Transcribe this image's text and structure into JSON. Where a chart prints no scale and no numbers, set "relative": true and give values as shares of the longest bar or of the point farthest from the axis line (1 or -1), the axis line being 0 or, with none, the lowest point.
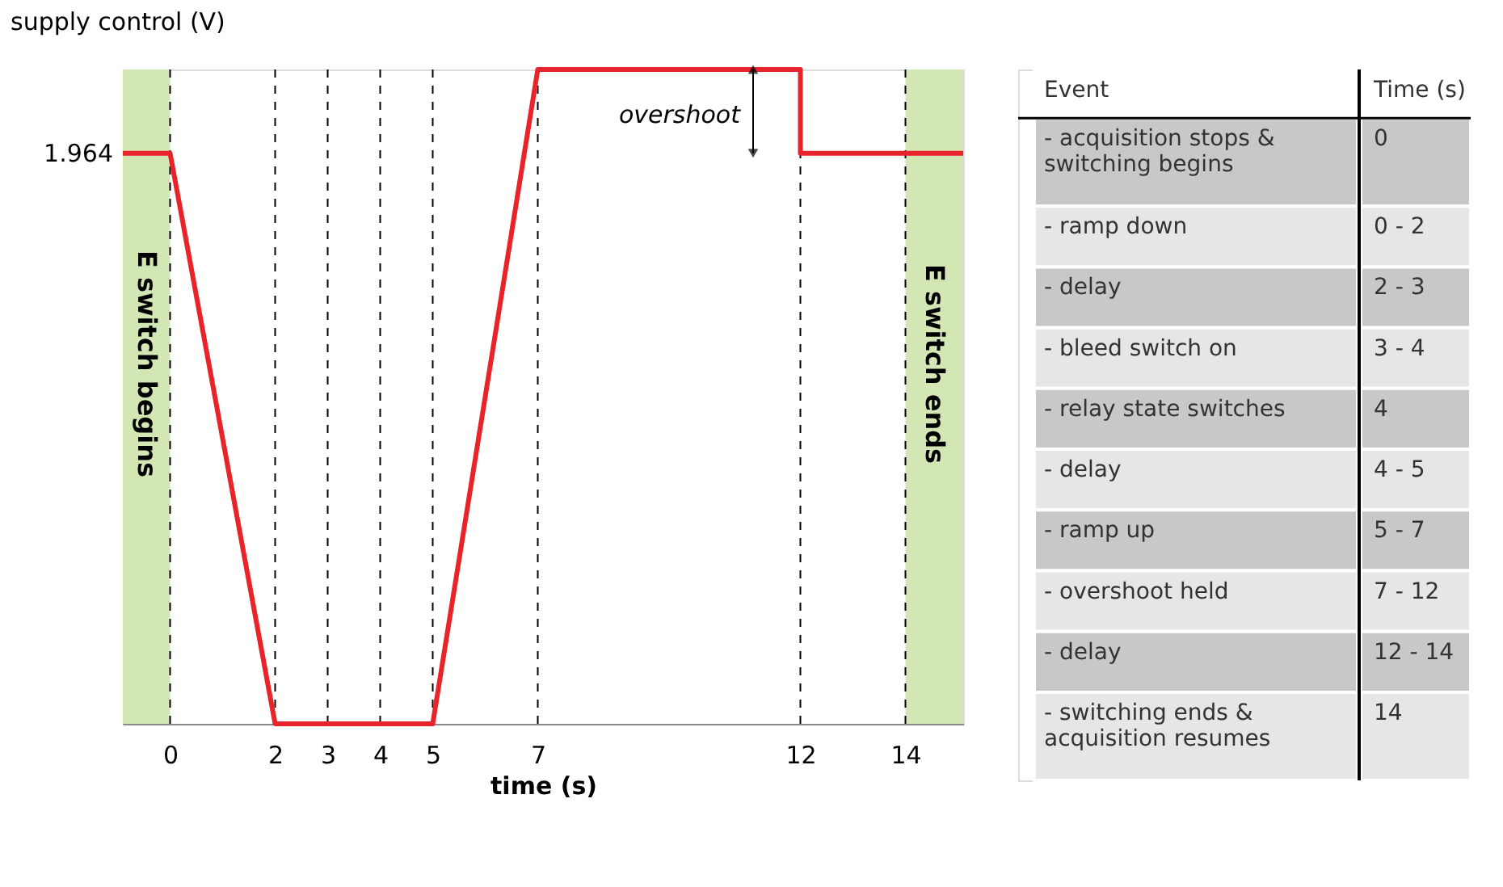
{
  "chart_data": [
    {
      "type": "line",
      "xlabel": "time (s)",
      "ylabel": "supply control (V)",
      "relative": true,
      "x": [
        -0.9,
        0,
        2,
        5,
        7,
        12,
        12,
        15.1
      ],
      "series": [
        {
          "color": "#e8242a",
          "values": [
            0.872,
            0.872,
            0,
            0,
            1,
            1,
            0.872,
            0.872
          ]
        }
      ],
      "xlim": [
        -0.9,
        15.1
      ],
      "xticks": [
        0,
        2,
        3,
        4,
        5,
        7,
        12,
        14
      ],
      "grid": false,
      "marker": "none",
      "line_style": "solid",
      "ref_lines": [
        {
          "axis": "x",
          "value": 0,
          "line_style": "dashed",
          "color": "#000000"
        },
        {
          "axis": "x",
          "value": 2,
          "line_style": "dashed",
          "color": "#000000"
        },
        {
          "axis": "x",
          "value": 3,
          "line_style": "dashed",
          "color": "#000000"
        },
        {
          "axis": "x",
          "value": 4,
          "line_style": "dashed",
          "color": "#000000"
        },
        {
          "axis": "x",
          "value": 5,
          "line_style": "dashed",
          "color": "#000000"
        },
        {
          "axis": "x",
          "value": 7,
          "line_style": "dashed",
          "color": "#000000"
        },
        {
          "axis": "x",
          "value": 12,
          "line_style": "dashed",
          "color": "#000000"
        },
        {
          "axis": "x",
          "value": 14,
          "line_style": "dashed",
          "color": "#000000"
        }
      ],
      "bands": [
        {
          "axis": "x",
          "from": -0.9,
          "to": 0,
          "label": "E switch begins",
          "color": "#d3e7b5"
        },
        {
          "axis": "x",
          "from": 14,
          "to": 15.1,
          "label": "E switch ends",
          "color": "#d3e7b5"
        }
      ],
      "annotations": [
        "1.964",
        {
          "text": "overshoot",
          "x": 11.1,
          "y": 1
        }
      ]
    },
    {
      "type": "other",
      "annotations": [
        "Event",
        "Time (s)",
        "- acquisition stops &\nswitching begins",
        "0",
        "- ramp down",
        "0 - 2",
        "- delay",
        "2 - 3",
        "- bleed switch on",
        "3 - 4",
        "- relay state switches",
        "4",
        "- delay",
        "4 - 5",
        "- ramp up",
        "5 - 7",
        "- overshoot held",
        "7 - 12",
        "- delay",
        "12 - 14",
        "- switching ends &\nacquisition resumes",
        "14"
      ]
    }
  ]
}
